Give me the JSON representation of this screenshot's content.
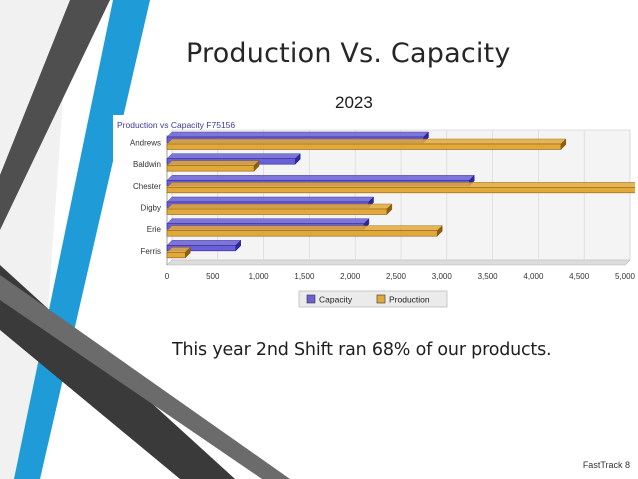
{
  "slide": {
    "title": "Production Vs. Capacity",
    "year": "2023",
    "body": "This year 2nd Shift ran 68% of our products.",
    "footer": "FastTrack 8"
  },
  "colors": {
    "capacity": "#6a5fd6",
    "capacity_dark": "#2f2797",
    "production": "#e2a93a",
    "production_dark": "#8a5f0f",
    "chart_title": "#3a3a9a"
  },
  "chart_data": {
    "type": "bar",
    "orientation": "horizontal",
    "title": "Production vs Capacity F75156",
    "categories": [
      "Andrews",
      "Baldwin",
      "Chester",
      "Digby",
      "Erie",
      "Ferris"
    ],
    "series": [
      {
        "name": "Capacity",
        "values": [
          2800,
          1400,
          3300,
          2200,
          2150,
          750
        ]
      },
      {
        "name": "Production",
        "values": [
          4300,
          950,
          5150,
          2400,
          2950,
          200
        ]
      }
    ],
    "xlim": [
      0,
      5000
    ],
    "xticks": [
      "0",
      "500",
      "1,000",
      "1,500",
      "2,000",
      "2,500",
      "3,000",
      "3,500",
      "4,000",
      "4,500",
      "5,000"
    ],
    "grid": true,
    "legend": "bottom"
  }
}
